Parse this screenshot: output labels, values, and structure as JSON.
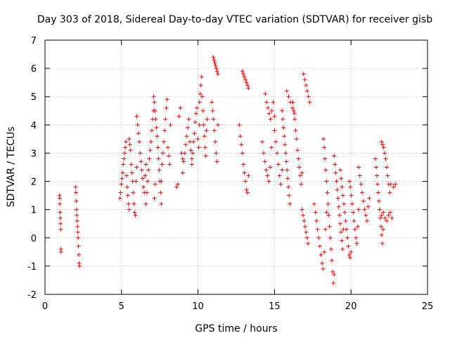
{
  "chart_data": {
    "type": "scatter",
    "title": "Day 303 of 2018, Sidereal Day-to-day VTEC variation (SDTVAR) for receiver gisb",
    "xlabel": "GPS time / hours",
    "ylabel": "SDTVAR / TECUs",
    "xlim": [
      0,
      25
    ],
    "ylim": [
      -2,
      7
    ],
    "x_ticks": [
      0,
      5,
      10,
      15,
      20,
      25
    ],
    "y_ticks": [
      -2,
      -1,
      0,
      1,
      2,
      3,
      4,
      5,
      6,
      7
    ],
    "x_tick_labels": [
      "0",
      "5",
      "10",
      "15",
      "20",
      "25"
    ],
    "y_tick_labels": [
      "-2",
      "-1",
      "0",
      "1",
      "2",
      "3",
      "4",
      "5",
      "6",
      "7"
    ],
    "grid": true,
    "marker": "plus",
    "color": "#ff0000",
    "series_segments": [
      {
        "x0": 0.95,
        "x1": 1.05,
        "ys": [
          1.5,
          1.4,
          1.2,
          0.9,
          0.7,
          0.5,
          0.3,
          -0.4,
          -0.5
        ]
      },
      {
        "x0": 2.0,
        "x1": 2.25,
        "ys": [
          1.8,
          1.6,
          1.3,
          1.0,
          0.8,
          0.6,
          0.4,
          0.2,
          0.0,
          -0.3,
          -0.6,
          -0.9,
          -1.0
        ]
      },
      {
        "x0": 4.9,
        "x1": 5.5,
        "ys": [
          1.4,
          1.6,
          1.9,
          2.1,
          2.3,
          2.6,
          2.8,
          3.0,
          3.2,
          3.4,
          2.2,
          1.8,
          1.5,
          1.2,
          1.0
        ]
      },
      {
        "x0": 5.5,
        "x1": 6.0,
        "ys": [
          3.5,
          3.3,
          3.1,
          2.6,
          2.3,
          2.0,
          1.6,
          1.2,
          0.9,
          0.8,
          2.0,
          2.5
        ]
      },
      {
        "x0": 6.0,
        "x1": 6.6,
        "ys": [
          4.3,
          4.0,
          3.7,
          3.4,
          3.0,
          2.7,
          2.4,
          2.1,
          1.8,
          1.6,
          2.2,
          2.6
        ]
      },
      {
        "x0": 6.6,
        "x1": 7.2,
        "ys": [
          1.2,
          1.6,
          2.0,
          2.4,
          2.8,
          3.1,
          3.4,
          3.8,
          4.2,
          4.5,
          1.4,
          1.9
        ]
      },
      {
        "x0": 7.1,
        "x1": 7.6,
        "ys": [
          5.0,
          4.8,
          4.5,
          4.2,
          3.9,
          3.6,
          3.2,
          2.8,
          2.4,
          2.0,
          1.6,
          1.2
        ]
      },
      {
        "x0": 7.6,
        "x1": 8.2,
        "ys": [
          2.0,
          2.6,
          3.0,
          3.4,
          3.8,
          4.2,
          4.6,
          4.9,
          3.2,
          2.9,
          2.6,
          4.0
        ]
      },
      {
        "x0": 8.6,
        "x1": 9.0,
        "ys": [
          1.8,
          1.9,
          4.3,
          4.6,
          3.0,
          2.8
        ]
      },
      {
        "x0": 9.0,
        "x1": 9.6,
        "ys": [
          2.3,
          2.7,
          3.0,
          3.3,
          3.6,
          3.9,
          4.2,
          3.4,
          3.1,
          2.8
        ]
      },
      {
        "x0": 9.6,
        "x1": 10.1,
        "ys": [
          2.6,
          3.0,
          3.4,
          3.7,
          4.1,
          4.4,
          4.6,
          3.5,
          3.2,
          4.0
        ]
      },
      {
        "x0": 10.1,
        "x1": 10.6,
        "ys": [
          4.8,
          5.1,
          5.4,
          5.7,
          5.0,
          4.5,
          4.0,
          3.6,
          3.2,
          2.9,
          3.8,
          4.2
        ]
      },
      {
        "x0": 10.9,
        "x1": 11.3,
        "ys": [
          4.8,
          4.5,
          4.2,
          3.8,
          3.4,
          3.0,
          2.7,
          4.0
        ]
      },
      {
        "x0": 11.0,
        "x1": 11.3,
        "ys": [
          6.4,
          6.3,
          6.2,
          6.1,
          6.0,
          5.9,
          5.8
        ]
      },
      {
        "x0": 12.9,
        "x1": 13.3,
        "ys": [
          5.9,
          5.8,
          5.7,
          5.6,
          5.5,
          5.4,
          5.3
        ]
      },
      {
        "x0": 12.7,
        "x1": 13.3,
        "ys": [
          4.0,
          3.6,
          3.3,
          3.0,
          2.6,
          2.3,
          2.0,
          1.7,
          1.6,
          2.2
        ]
      },
      {
        "x0": 14.2,
        "x1": 14.8,
        "ys": [
          3.4,
          3.0,
          2.7,
          2.4,
          2.2,
          2.0,
          2.5,
          3.2
        ]
      },
      {
        "x0": 14.4,
        "x1": 15.0,
        "ys": [
          5.1,
          4.8,
          4.6,
          4.4,
          4.2,
          4.5,
          4.8,
          4.3
        ]
      },
      {
        "x0": 15.0,
        "x1": 15.5,
        "ys": [
          3.8,
          3.4,
          3.0,
          2.6,
          2.2,
          1.9,
          2.4
        ]
      },
      {
        "x0": 15.5,
        "x1": 16.0,
        "ys": [
          4.5,
          4.2,
          3.9,
          3.6,
          3.3,
          3.0,
          2.7,
          2.4,
          2.1,
          1.8,
          1.5,
          1.2
        ]
      },
      {
        "x0": 15.8,
        "x1": 16.3,
        "ys": [
          5.2,
          5.0,
          4.8,
          4.6,
          4.4
        ]
      },
      {
        "x0": 16.2,
        "x1": 16.8,
        "ys": [
          4.8,
          4.5,
          4.2,
          3.8,
          3.5,
          3.1,
          2.8,
          2.5,
          2.2,
          1.9,
          2.3
        ]
      },
      {
        "x0": 16.9,
        "x1": 17.3,
        "ys": [
          5.8,
          5.6,
          5.4,
          5.2,
          5.0,
          4.8
        ]
      },
      {
        "x0": 16.8,
        "x1": 17.2,
        "ys": [
          1.0,
          0.8,
          0.6,
          0.4,
          0.2,
          0.0,
          -0.2
        ]
      },
      {
        "x0": 17.6,
        "x1": 18.4,
        "ys": [
          1.2,
          0.9,
          0.6,
          0.3,
          0.0,
          -0.3,
          -0.6,
          -0.9,
          -1.1,
          -0.5,
          0.3,
          0.9
        ]
      },
      {
        "x0": 18.2,
        "x1": 18.9,
        "ys": [
          3.5,
          3.2,
          2.8,
          2.4,
          2.0,
          1.6,
          1.2,
          0.8,
          0.4,
          0.0,
          -0.4,
          -0.8,
          -1.2,
          -1.6,
          -1.3
        ]
      },
      {
        "x0": 18.9,
        "x1": 19.5,
        "ys": [
          2.9,
          2.6,
          2.3,
          2.0,
          1.7,
          1.4,
          1.1,
          0.8,
          0.5,
          0.2,
          -0.1,
          -0.4,
          0.3
        ]
      },
      {
        "x0": 19.3,
        "x1": 20.0,
        "ys": [
          2.4,
          2.1,
          1.8,
          1.5,
          1.2,
          0.9,
          0.6,
          0.3,
          0.0,
          -0.3,
          -0.6,
          -0.7,
          -0.5
        ]
      },
      {
        "x0": 19.9,
        "x1": 20.5,
        "ys": [
          2.0,
          1.8,
          1.5,
          1.2,
          0.9,
          0.6,
          0.3,
          0.0,
          -0.2,
          0.4,
          1.0
        ]
      },
      {
        "x0": 20.5,
        "x1": 21.2,
        "ys": [
          2.5,
          2.2,
          1.9,
          1.6,
          1.3,
          1.0,
          0.8,
          0.6,
          1.1,
          1.4
        ]
      },
      {
        "x0": 21.6,
        "x1": 22.1,
        "ys": [
          2.8,
          2.5,
          2.2,
          1.9,
          1.6,
          1.3,
          1.0,
          0.7,
          0.4,
          0.1,
          -0.2,
          0.3
        ]
      },
      {
        "x0": 22.0,
        "x1": 22.6,
        "ys": [
          3.4,
          3.3,
          3.2,
          3.0,
          2.8,
          2.5,
          2.2,
          1.9,
          1.6,
          1.9
        ]
      },
      {
        "x0": 22.0,
        "x1": 22.9,
        "ys": [
          0.8,
          0.9,
          0.7,
          0.6,
          0.8,
          0.9,
          0.7,
          1.8,
          1.9
        ]
      }
    ]
  }
}
